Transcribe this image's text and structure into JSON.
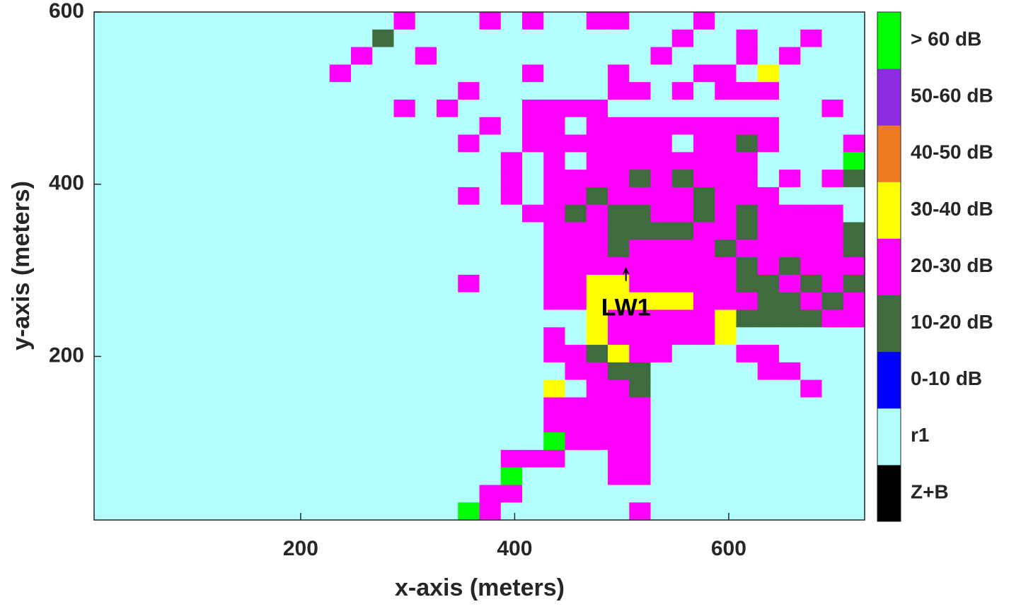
{
  "chart_data": {
    "type": "heatmap",
    "xlabel": "x-axis (meters)",
    "ylabel": "y-axis (meters)",
    "xlim": [
      7,
      727
    ],
    "ylim": [
      10,
      600
    ],
    "xticks": [
      200,
      400,
      600
    ],
    "yticks": [
      200,
      400,
      600
    ],
    "colorbar": {
      "labels": [
        "Z+B",
        "r1",
        "0-10 dB",
        "10-20 dB",
        "20-30 dB",
        "30-40 dB",
        "40-50 dB",
        "50-60 dB",
        "> 60 dB"
      ],
      "colors": [
        "#000000",
        "#b3ffff",
        "#0000ff",
        "#3f6b3f",
        "#ff00ff",
        "#ffff00",
        "#f07a21",
        "#8b2be2",
        "#00ff00"
      ]
    },
    "annotation": {
      "text": "LW1",
      "x": 504,
      "y": 304
    },
    "z": [
      [
        1,
        1,
        1,
        1,
        1,
        1,
        1,
        1,
        1,
        1,
        1,
        1,
        1,
        1,
        4,
        1,
        1,
        1,
        4,
        1,
        4,
        1,
        1,
        4,
        4,
        1,
        1,
        1,
        4,
        1,
        1,
        1,
        1,
        1,
        1,
        1
      ],
      [
        1,
        1,
        1,
        1,
        1,
        1,
        1,
        1,
        1,
        1,
        1,
        1,
        1,
        3,
        1,
        1,
        1,
        1,
        1,
        1,
        1,
        1,
        1,
        1,
        1,
        1,
        1,
        4,
        1,
        1,
        4,
        1,
        1,
        4,
        1,
        1
      ],
      [
        1,
        1,
        1,
        1,
        1,
        1,
        1,
        1,
        1,
        1,
        1,
        1,
        4,
        1,
        1,
        4,
        1,
        1,
        1,
        1,
        1,
        1,
        1,
        1,
        1,
        1,
        4,
        1,
        1,
        1,
        4,
        1,
        4,
        1,
        1,
        1
      ],
      [
        1,
        1,
        1,
        1,
        1,
        1,
        1,
        1,
        1,
        1,
        1,
        4,
        1,
        1,
        1,
        1,
        1,
        1,
        1,
        1,
        4,
        1,
        1,
        1,
        4,
        1,
        1,
        1,
        4,
        4,
        1,
        5,
        1,
        1,
        1,
        1
      ],
      [
        1,
        1,
        1,
        1,
        1,
        1,
        1,
        1,
        1,
        1,
        1,
        1,
        1,
        1,
        1,
        1,
        1,
        4,
        1,
        1,
        1,
        1,
        1,
        1,
        4,
        4,
        1,
        4,
        1,
        4,
        4,
        4,
        1,
        1,
        1,
        1
      ],
      [
        1,
        1,
        1,
        1,
        1,
        1,
        1,
        1,
        1,
        1,
        1,
        1,
        1,
        1,
        4,
        1,
        4,
        1,
        1,
        1,
        4,
        4,
        4,
        4,
        1,
        1,
        1,
        1,
        1,
        1,
        1,
        1,
        1,
        1,
        4,
        1
      ],
      [
        1,
        1,
        1,
        1,
        1,
        1,
        1,
        1,
        1,
        1,
        1,
        1,
        1,
        1,
        1,
        1,
        1,
        1,
        4,
        1,
        4,
        4,
        1,
        4,
        4,
        4,
        4,
        4,
        4,
        4,
        4,
        4,
        1,
        1,
        1,
        1
      ],
      [
        1,
        1,
        1,
        1,
        1,
        1,
        1,
        1,
        1,
        1,
        1,
        1,
        1,
        1,
        1,
        1,
        1,
        4,
        1,
        1,
        4,
        4,
        4,
        4,
        4,
        4,
        4,
        1,
        4,
        4,
        3,
        4,
        1,
        1,
        1,
        4
      ],
      [
        1,
        1,
        1,
        1,
        1,
        1,
        1,
        1,
        1,
        1,
        1,
        1,
        1,
        1,
        1,
        1,
        1,
        1,
        1,
        4,
        1,
        4,
        1,
        4,
        4,
        4,
        4,
        4,
        4,
        4,
        4,
        1,
        1,
        1,
        1,
        8
      ],
      [
        1,
        1,
        1,
        1,
        1,
        1,
        1,
        1,
        1,
        1,
        1,
        1,
        1,
        1,
        1,
        1,
        1,
        1,
        1,
        4,
        1,
        4,
        4,
        4,
        4,
        3,
        4,
        3,
        4,
        4,
        4,
        1,
        4,
        1,
        4,
        3
      ],
      [
        1,
        1,
        1,
        1,
        1,
        1,
        1,
        1,
        1,
        1,
        1,
        1,
        1,
        1,
        1,
        1,
        1,
        4,
        1,
        4,
        1,
        4,
        4,
        3,
        4,
        4,
        4,
        4,
        3,
        4,
        4,
        4,
        1,
        1,
        1,
        1
      ],
      [
        1,
        1,
        1,
        1,
        1,
        1,
        1,
        1,
        1,
        1,
        1,
        1,
        1,
        1,
        1,
        1,
        1,
        1,
        1,
        1,
        4,
        4,
        3,
        4,
        3,
        3,
        4,
        4,
        3,
        4,
        3,
        4,
        4,
        4,
        4,
        1
      ],
      [
        1,
        1,
        1,
        1,
        1,
        1,
        1,
        1,
        1,
        1,
        1,
        1,
        1,
        1,
        1,
        1,
        1,
        1,
        1,
        1,
        1,
        4,
        4,
        4,
        3,
        3,
        3,
        3,
        4,
        4,
        3,
        4,
        4,
        4,
        4,
        3
      ],
      [
        1,
        1,
        1,
        1,
        1,
        1,
        1,
        1,
        1,
        1,
        1,
        1,
        1,
        1,
        1,
        1,
        1,
        1,
        1,
        1,
        1,
        4,
        4,
        4,
        3,
        4,
        4,
        4,
        4,
        3,
        4,
        4,
        4,
        4,
        4,
        3
      ],
      [
        1,
        1,
        1,
        1,
        1,
        1,
        1,
        1,
        1,
        1,
        1,
        1,
        1,
        1,
        1,
        1,
        1,
        1,
        1,
        1,
        1,
        4,
        4,
        4,
        4,
        4,
        4,
        4,
        4,
        4,
        3,
        4,
        3,
        4,
        4,
        4
      ],
      [
        1,
        1,
        1,
        1,
        1,
        1,
        1,
        1,
        1,
        1,
        1,
        1,
        1,
        1,
        1,
        1,
        1,
        4,
        1,
        1,
        1,
        4,
        4,
        5,
        5,
        4,
        4,
        4,
        4,
        4,
        3,
        3,
        4,
        3,
        4,
        3
      ],
      [
        1,
        1,
        1,
        1,
        1,
        1,
        1,
        1,
        1,
        1,
        1,
        1,
        1,
        1,
        1,
        1,
        1,
        1,
        1,
        1,
        1,
        4,
        4,
        5,
        5,
        5,
        5,
        5,
        4,
        4,
        4,
        3,
        3,
        4,
        3,
        4
      ],
      [
        1,
        1,
        1,
        1,
        1,
        1,
        1,
        1,
        1,
        1,
        1,
        1,
        1,
        1,
        1,
        1,
        1,
        1,
        1,
        1,
        1,
        1,
        1,
        5,
        4,
        4,
        4,
        4,
        4,
        5,
        3,
        3,
        3,
        3,
        4,
        4
      ],
      [
        1,
        1,
        1,
        1,
        1,
        1,
        1,
        1,
        1,
        1,
        1,
        1,
        1,
        1,
        1,
        1,
        1,
        1,
        1,
        1,
        1,
        4,
        1,
        5,
        4,
        4,
        4,
        4,
        4,
        5,
        1,
        1,
        1,
        1,
        1,
        1
      ],
      [
        1,
        1,
        1,
        1,
        1,
        1,
        1,
        1,
        1,
        1,
        1,
        1,
        1,
        1,
        1,
        1,
        1,
        1,
        1,
        1,
        1,
        4,
        4,
        3,
        5,
        4,
        4,
        1,
        1,
        1,
        4,
        4,
        1,
        1,
        1,
        1
      ],
      [
        1,
        1,
        1,
        1,
        1,
        1,
        1,
        1,
        1,
        1,
        1,
        1,
        1,
        1,
        1,
        1,
        1,
        1,
        1,
        1,
        1,
        1,
        4,
        4,
        3,
        3,
        1,
        1,
        1,
        1,
        1,
        4,
        4,
        1,
        1,
        1
      ],
      [
        1,
        1,
        1,
        1,
        1,
        1,
        1,
        1,
        1,
        1,
        1,
        1,
        1,
        1,
        1,
        1,
        1,
        1,
        1,
        1,
        1,
        5,
        1,
        4,
        4,
        3,
        1,
        1,
        1,
        1,
        1,
        1,
        1,
        4,
        1,
        1
      ],
      [
        1,
        1,
        1,
        1,
        1,
        1,
        1,
        1,
        1,
        1,
        1,
        1,
        1,
        1,
        1,
        1,
        1,
        1,
        1,
        1,
        1,
        4,
        4,
        4,
        4,
        4,
        1,
        1,
        1,
        1,
        1,
        1,
        1,
        1,
        1,
        1
      ],
      [
        1,
        1,
        1,
        1,
        1,
        1,
        1,
        1,
        1,
        1,
        1,
        1,
        1,
        1,
        1,
        1,
        1,
        1,
        1,
        1,
        1,
        4,
        4,
        4,
        4,
        4,
        1,
        1,
        1,
        1,
        1,
        1,
        1,
        1,
        1,
        1
      ],
      [
        1,
        1,
        1,
        1,
        1,
        1,
        1,
        1,
        1,
        1,
        1,
        1,
        1,
        1,
        1,
        1,
        1,
        1,
        1,
        1,
        1,
        8,
        4,
        4,
        4,
        4,
        1,
        1,
        1,
        1,
        1,
        1,
        1,
        1,
        1,
        1
      ],
      [
        1,
        1,
        1,
        1,
        1,
        1,
        1,
        1,
        1,
        1,
        1,
        1,
        1,
        1,
        1,
        1,
        1,
        1,
        1,
        4,
        4,
        4,
        1,
        1,
        4,
        4,
        1,
        1,
        1,
        1,
        1,
        1,
        1,
        1,
        1,
        1
      ],
      [
        1,
        1,
        1,
        1,
        1,
        1,
        1,
        1,
        1,
        1,
        1,
        1,
        1,
        1,
        1,
        1,
        1,
        1,
        1,
        8,
        1,
        1,
        1,
        1,
        4,
        4,
        1,
        1,
        1,
        1,
        1,
        1,
        1,
        1,
        1,
        1
      ],
      [
        1,
        1,
        1,
        1,
        1,
        1,
        1,
        1,
        1,
        1,
        1,
        1,
        1,
        1,
        1,
        1,
        1,
        1,
        4,
        4,
        1,
        1,
        1,
        1,
        1,
        1,
        1,
        1,
        1,
        1,
        1,
        1,
        1,
        1,
        1,
        1
      ],
      [
        1,
        1,
        1,
        1,
        1,
        1,
        1,
        1,
        1,
        1,
        1,
        1,
        1,
        1,
        1,
        1,
        1,
        8,
        4,
        1,
        1,
        1,
        1,
        1,
        1,
        4,
        1,
        1,
        1,
        1,
        1,
        1,
        1,
        1,
        1,
        1
      ]
    ]
  }
}
